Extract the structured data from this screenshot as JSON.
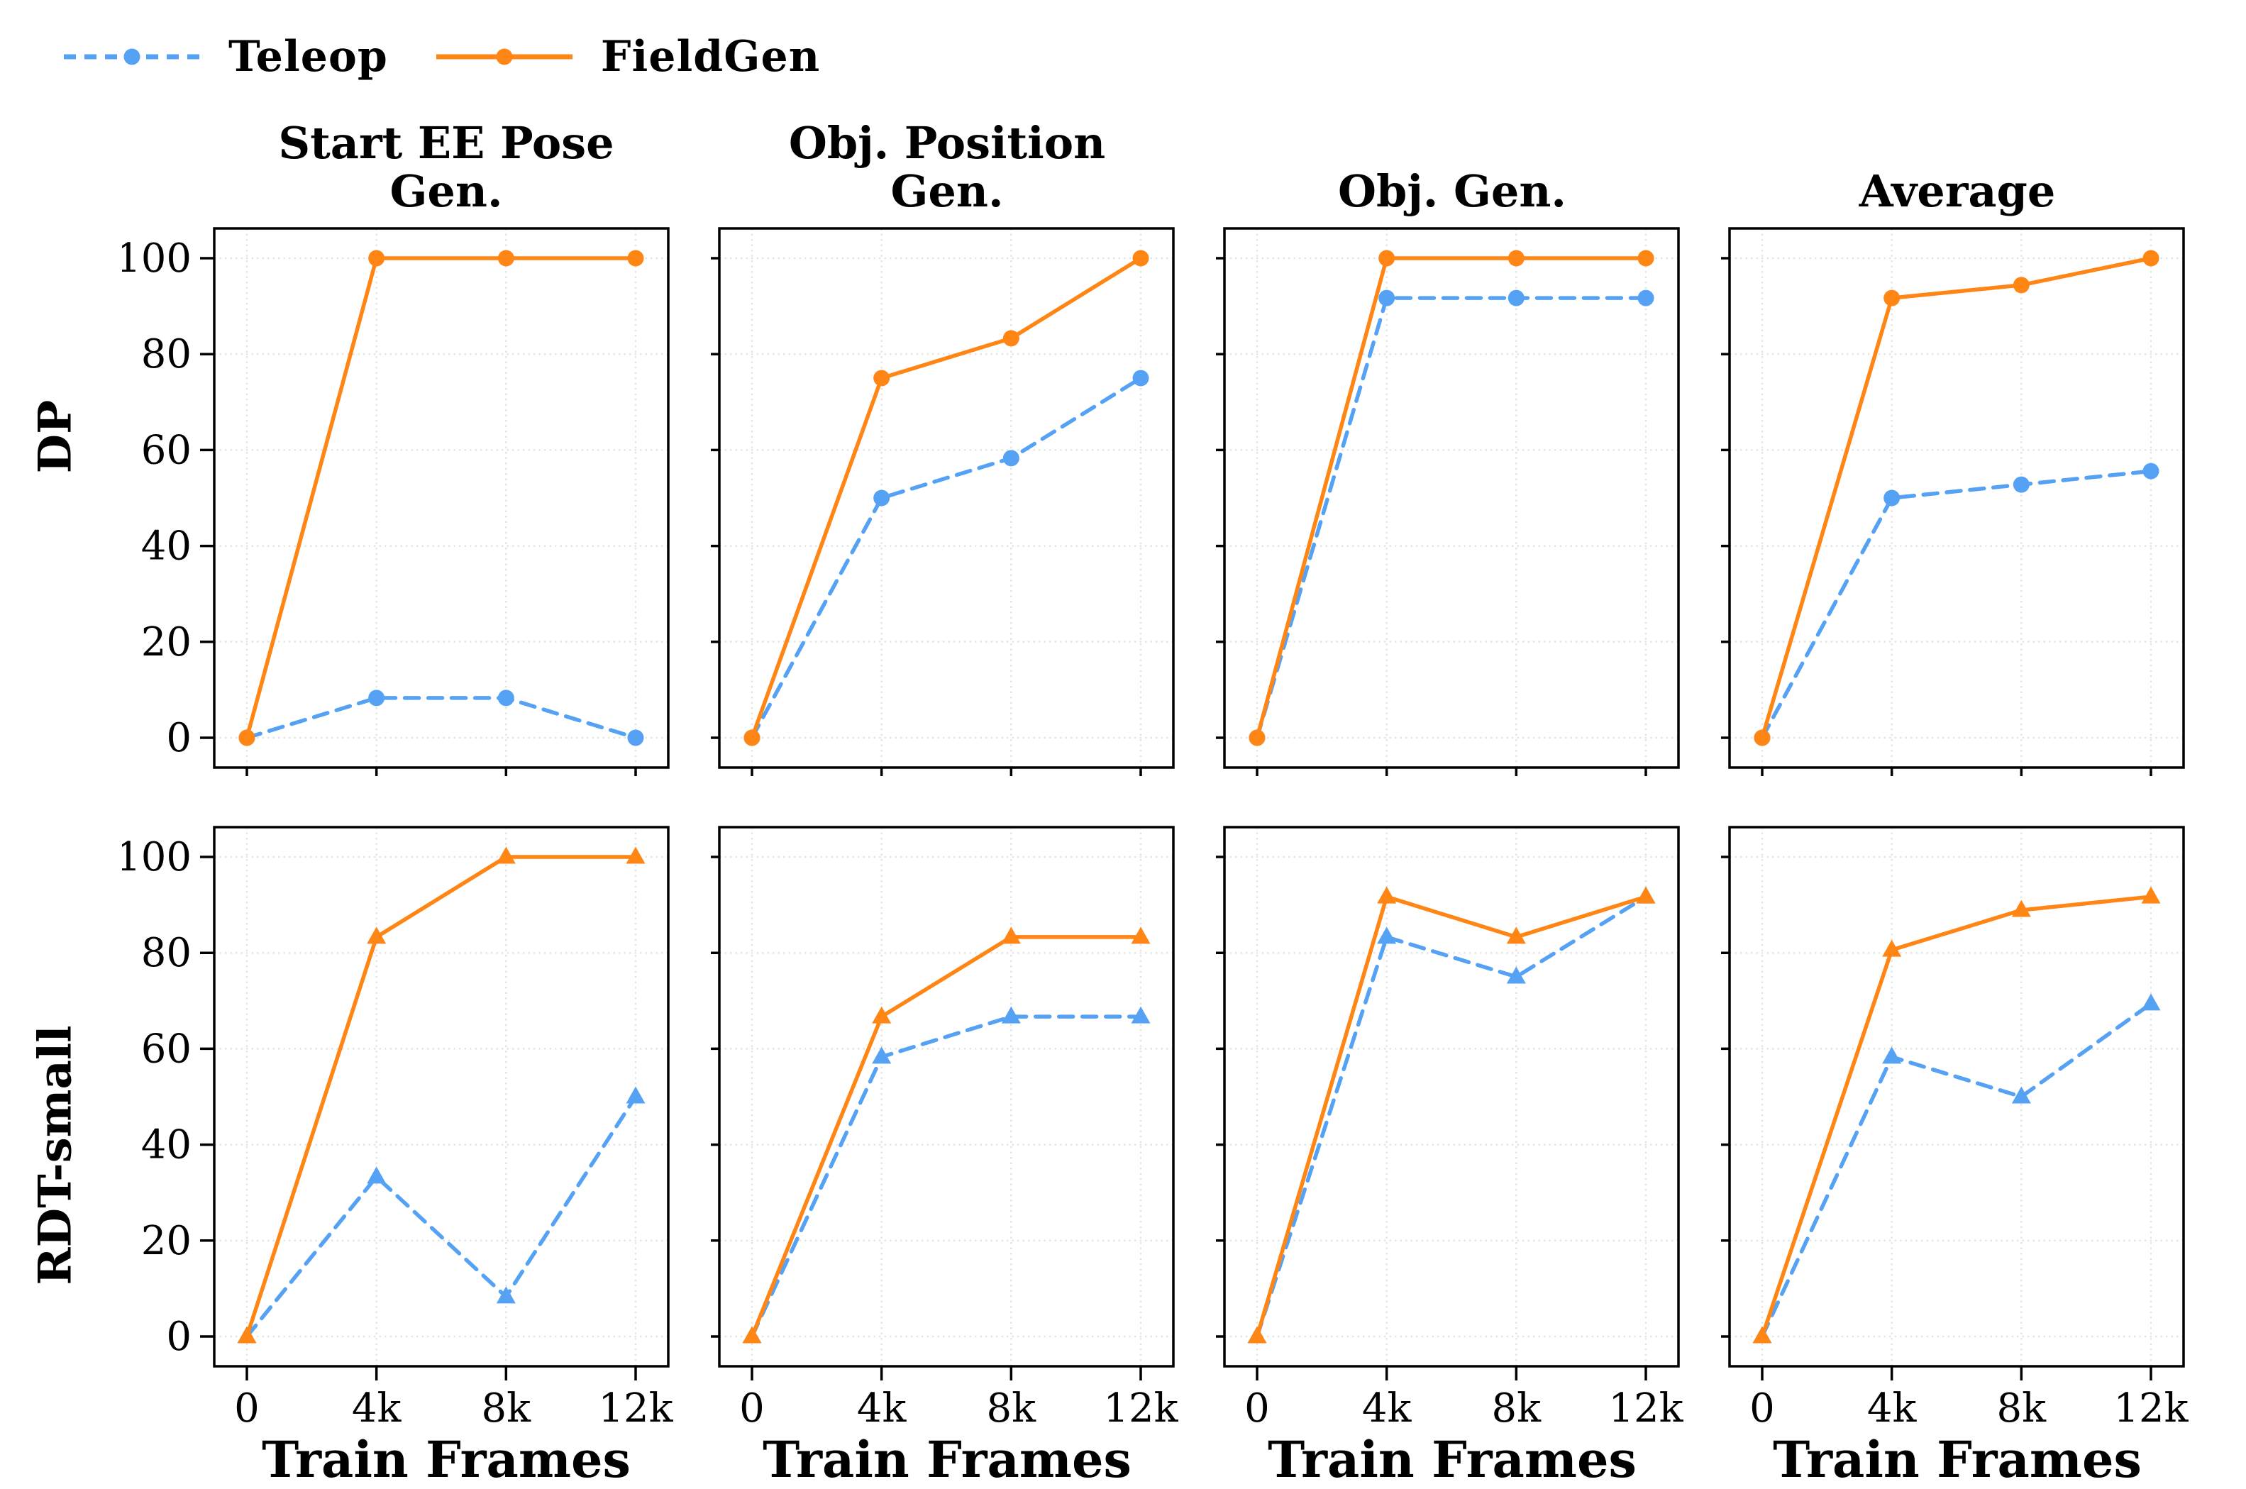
{
  "legend": {
    "items": [
      {
        "label": "Teleop",
        "color": "#55A2F5",
        "line": "dashed"
      },
      {
        "label": "FieldGen",
        "color": "#FF8514",
        "line": "solid"
      }
    ]
  },
  "rows": [
    {
      "label": "DP",
      "marker": "circle"
    },
    {
      "label": "RDT-small",
      "marker": "triangle"
    }
  ],
  "col_titles": [
    "Start EE Pose\nGen.",
    "Obj. Position\nGen.",
    "Obj. Gen.",
    "Average"
  ],
  "axes": {
    "xlabel": "Train Frames",
    "x_ticks": [
      "0",
      "4k",
      "8k",
      "12k"
    ],
    "x_values": [
      0,
      4,
      8,
      12
    ],
    "y_ticks": [
      0,
      20,
      40,
      60,
      80,
      100
    ],
    "ylim": [
      0,
      100
    ],
    "grid": "dotted"
  },
  "chart_data": [
    {
      "type": "line",
      "row": 0,
      "col": 0,
      "title": "Start EE Pose Gen.",
      "x": [
        "0",
        "4k",
        "8k",
        "12k"
      ],
      "series": [
        {
          "name": "Teleop",
          "values": [
            0,
            8.3,
            8.3,
            0
          ]
        },
        {
          "name": "FieldGen",
          "values": [
            0,
            100,
            100,
            100
          ]
        }
      ]
    },
    {
      "type": "line",
      "row": 0,
      "col": 1,
      "title": "Obj. Position Gen.",
      "x": [
        "0",
        "4k",
        "8k",
        "12k"
      ],
      "series": [
        {
          "name": "Teleop",
          "values": [
            0,
            50,
            58.3,
            75
          ]
        },
        {
          "name": "FieldGen",
          "values": [
            0,
            75,
            83.3,
            100
          ]
        }
      ]
    },
    {
      "type": "line",
      "row": 0,
      "col": 2,
      "title": "Obj. Gen.",
      "x": [
        "0",
        "4k",
        "8k",
        "12k"
      ],
      "series": [
        {
          "name": "Teleop",
          "values": [
            0,
            91.7,
            91.7,
            91.7
          ]
        },
        {
          "name": "FieldGen",
          "values": [
            0,
            100,
            100,
            100
          ]
        }
      ]
    },
    {
      "type": "line",
      "row": 0,
      "col": 3,
      "title": "Average",
      "x": [
        "0",
        "4k",
        "8k",
        "12k"
      ],
      "series": [
        {
          "name": "Teleop",
          "values": [
            0,
            50,
            52.8,
            55.6
          ]
        },
        {
          "name": "FieldGen",
          "values": [
            0,
            91.7,
            94.4,
            100
          ]
        }
      ]
    },
    {
      "type": "line",
      "row": 1,
      "col": 0,
      "title": "Start EE Pose Gen.",
      "x": [
        "0",
        "4k",
        "8k",
        "12k"
      ],
      "series": [
        {
          "name": "Teleop",
          "values": [
            0,
            33.3,
            8.3,
            50
          ]
        },
        {
          "name": "FieldGen",
          "values": [
            0,
            83.3,
            100,
            100
          ]
        }
      ]
    },
    {
      "type": "line",
      "row": 1,
      "col": 1,
      "title": "Obj. Position Gen.",
      "x": [
        "0",
        "4k",
        "8k",
        "12k"
      ],
      "series": [
        {
          "name": "Teleop",
          "values": [
            0,
            58.3,
            66.7,
            66.7
          ]
        },
        {
          "name": "FieldGen",
          "values": [
            0,
            66.7,
            83.3,
            83.3
          ]
        }
      ]
    },
    {
      "type": "line",
      "row": 1,
      "col": 2,
      "title": "Obj. Gen.",
      "x": [
        "0",
        "4k",
        "8k",
        "12k"
      ],
      "series": [
        {
          "name": "Teleop",
          "values": [
            0,
            83.3,
            75,
            91.7
          ]
        },
        {
          "name": "FieldGen",
          "values": [
            0,
            91.7,
            83.3,
            91.7
          ]
        }
      ]
    },
    {
      "type": "line",
      "row": 1,
      "col": 3,
      "title": "Average",
      "x": [
        "0",
        "4k",
        "8k",
        "12k"
      ],
      "series": [
        {
          "name": "Teleop",
          "values": [
            0,
            58.3,
            50,
            69.4
          ]
        },
        {
          "name": "FieldGen",
          "values": [
            0,
            80.6,
            88.9,
            91.7
          ]
        }
      ]
    }
  ]
}
